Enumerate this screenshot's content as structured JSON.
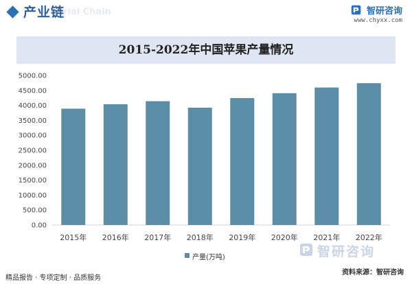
{
  "header": {
    "title": "产业链",
    "watermark_text": "rial Chain"
  },
  "brand": {
    "name": "智研咨询",
    "url": "www.chyxx.com",
    "color": "#2d6fb3"
  },
  "watermark": {
    "text": "智研咨询"
  },
  "footer": {
    "left": "精品报告 · 专项定制 · 品质服务",
    "source": "资料来源：智研咨询"
  },
  "chart_data": {
    "type": "bar",
    "title": "2015-2022年中国苹果产量情况",
    "categories": [
      "2015年",
      "2016年",
      "2017年",
      "2018年",
      "2019年",
      "2020年",
      "2021年",
      "2022年"
    ],
    "series": [
      {
        "name": "产量(万吨)",
        "values": [
          3890,
          4039,
          4139,
          3923,
          4243,
          4407,
          4597,
          4742
        ],
        "color": "#5b8ea6"
      }
    ],
    "ylim": [
      0,
      5000
    ],
    "yticks": [
      "0.00",
      "500.00",
      "1000.00",
      "1500.00",
      "2000.00",
      "2500.00",
      "3000.00",
      "3500.00",
      "4000.00",
      "4500.00",
      "5000.00"
    ],
    "ytick_values": [
      0,
      500,
      1000,
      1500,
      2000,
      2500,
      3000,
      3500,
      4000,
      4500,
      5000
    ],
    "grid": false,
    "legend": "bottom-center"
  }
}
